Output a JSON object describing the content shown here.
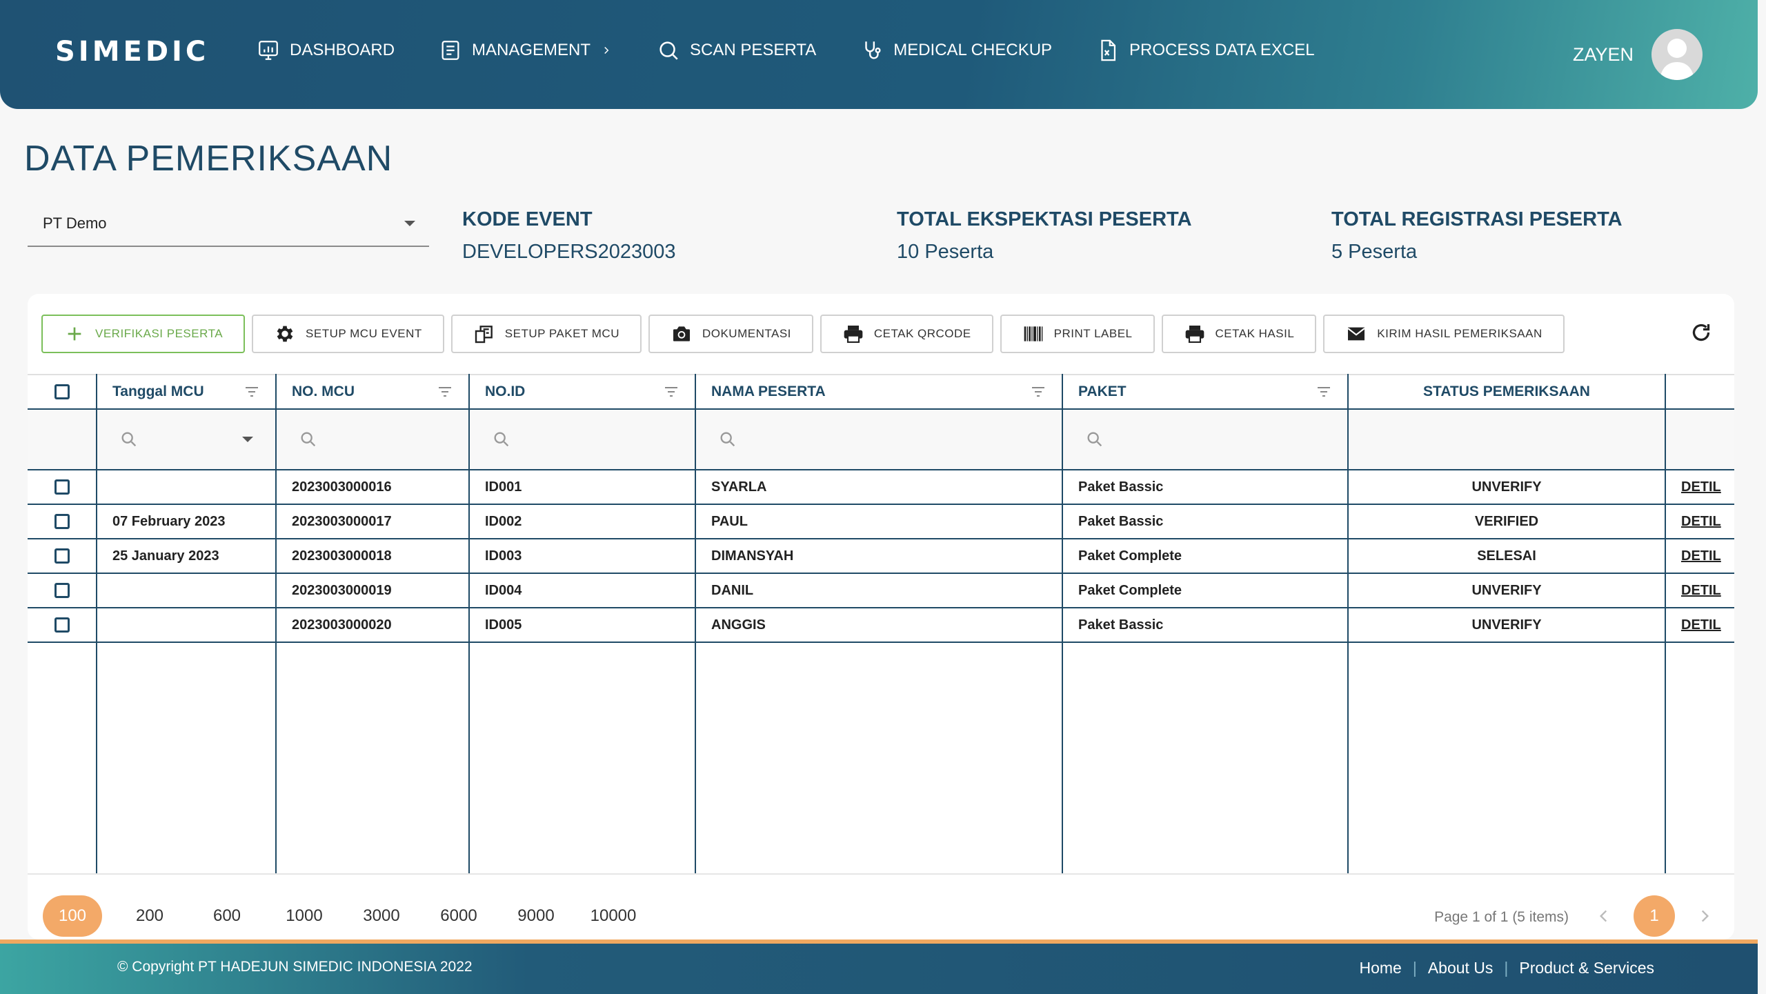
{
  "header": {
    "logo": "SIMEDIC",
    "nav": [
      {
        "label": "DASHBOARD",
        "icon": "dashboard-icon"
      },
      {
        "label": "MANAGEMENT",
        "icon": "document-icon",
        "has_submenu": true
      },
      {
        "label": "SCAN PESERTA",
        "icon": "search-icon"
      },
      {
        "label": "MEDICAL CHECKUP",
        "icon": "stethoscope-icon"
      },
      {
        "label": "PROCESS DATA EXCEL",
        "icon": "excel-file-icon"
      }
    ],
    "user_name": "ZAYEN"
  },
  "page": {
    "title": "DATA PEMERIKSAAN",
    "company": "PT Demo",
    "stats": [
      {
        "label": "KODE EVENT",
        "value": "DEVELOPERS2023003"
      },
      {
        "label": "TOTAL EKSPEKTASI PESERTA",
        "value": "10 Peserta"
      },
      {
        "label": "TOTAL REGISTRASI PESERTA",
        "value": "5 Peserta"
      }
    ]
  },
  "toolbar": [
    {
      "label": "VERIFIKASI PESERTA",
      "icon": "plus-icon"
    },
    {
      "label": "SETUP MCU EVENT",
      "icon": "gear-icon"
    },
    {
      "label": "SETUP PAKET MCU",
      "icon": "package-icon"
    },
    {
      "label": "DOKUMENTASI",
      "icon": "camera-icon"
    },
    {
      "label": "CETAK QRCODE",
      "icon": "printer-icon"
    },
    {
      "label": "PRINT LABEL",
      "icon": "barcode-icon"
    },
    {
      "label": "CETAK HASIL",
      "icon": "printer-icon"
    },
    {
      "label": "KIRIM HASIL PEMERIKSAAN",
      "icon": "mail-icon"
    }
  ],
  "table": {
    "columns": [
      "Tanggal MCU",
      "NO. MCU",
      "NO.ID",
      "NAMA PESERTA",
      "PAKET",
      "STATUS PEMERIKSAAN"
    ],
    "rows": [
      {
        "tanggal": "",
        "no_mcu": "2023003000016",
        "no_id": "ID001",
        "nama": "SYARLA",
        "paket": "Paket Bassic",
        "status": "UNVERIFY",
        "action": "DETIL"
      },
      {
        "tanggal": "07 February 2023",
        "no_mcu": "2023003000017",
        "no_id": "ID002",
        "nama": "PAUL",
        "paket": "Paket Bassic",
        "status": "VERIFIED",
        "action": "DETIL"
      },
      {
        "tanggal": "25 January 2023",
        "no_mcu": "2023003000018",
        "no_id": "ID003",
        "nama": "DIMANSYAH",
        "paket": "Paket Complete",
        "status": "SELESAI",
        "action": "DETIL"
      },
      {
        "tanggal": "",
        "no_mcu": "2023003000019",
        "no_id": "ID004",
        "nama": "DANIL",
        "paket": "Paket Complete",
        "status": "UNVERIFY",
        "action": "DETIL"
      },
      {
        "tanggal": "",
        "no_mcu": "2023003000020",
        "no_id": "ID005",
        "nama": "ANGGIS",
        "paket": "Paket Bassic",
        "status": "UNVERIFY",
        "action": "DETIL"
      }
    ]
  },
  "pager": {
    "sizes": [
      "100",
      "200",
      "600",
      "1000",
      "3000",
      "6000",
      "9000",
      "10000"
    ],
    "active_size": "100",
    "info": "Page 1 of 1 (5 items)",
    "current_page": "1"
  },
  "footer": {
    "copyright": "© Copyright PT HADEJUN SIMEDIC INDONESIA 2022",
    "links": [
      "Home",
      "About Us",
      "Product & Services"
    ]
  },
  "colors": {
    "primary": "#1f4a66",
    "accent": "#f3a968",
    "unverify": "#e01f1f",
    "verify_button": "#6aa94a"
  }
}
